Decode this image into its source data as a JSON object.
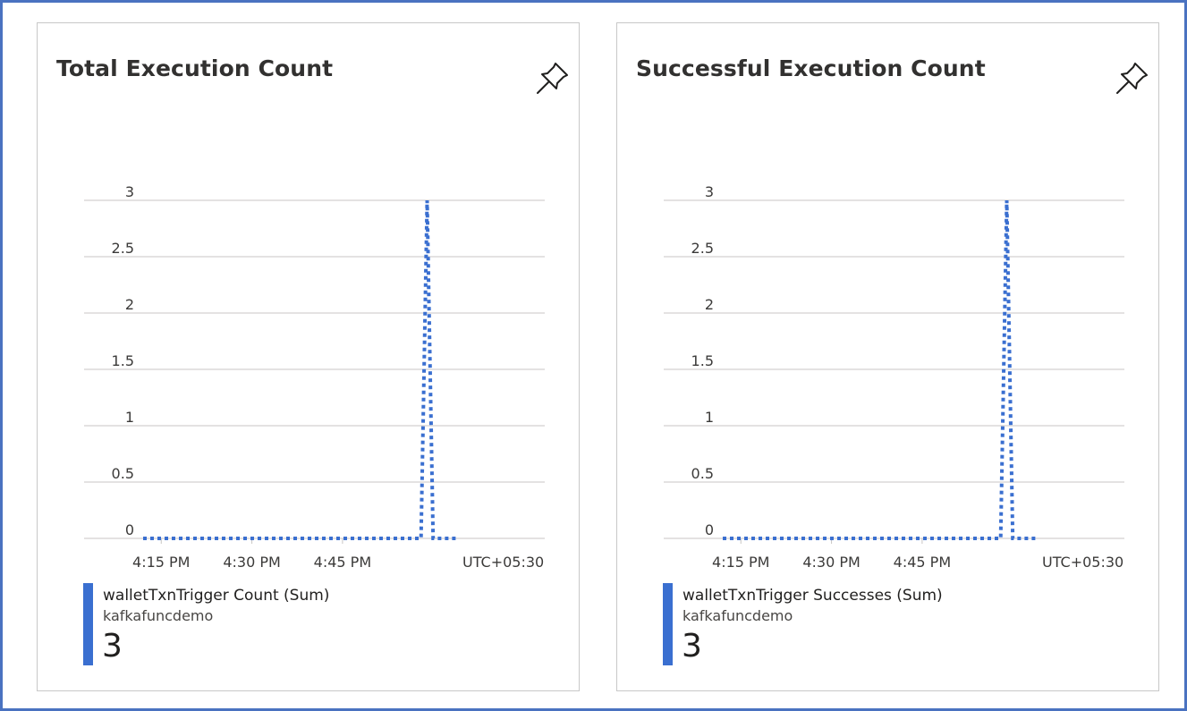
{
  "timezone_label": "UTC+05:30",
  "colors": {
    "series": "#3a6fd0",
    "grid": "#c8c6c4",
    "frame": "#4a72c0"
  },
  "cards": [
    {
      "title": "Total Execution Count",
      "pin_icon": "pin-icon",
      "legend": {
        "series": "walletTxnTrigger Count (Sum)",
        "resource": "kafkafuncdemo",
        "value": "3"
      }
    },
    {
      "title": "Successful Execution Count",
      "pin_icon": "pin-icon",
      "legend": {
        "series": "walletTxnTrigger Successes (Sum)",
        "resource": "kafkafuncdemo",
        "value": "3"
      }
    }
  ],
  "chart_data": [
    {
      "type": "line",
      "title": "Total Execution Count",
      "xlabel": "",
      "ylabel": "",
      "ylim": [
        0,
        3
      ],
      "yticks": [
        "0",
        "0.5",
        "1",
        "1.5",
        "2",
        "2.5",
        "3"
      ],
      "xticks": [
        "4:15 PM",
        "4:30 PM",
        "4:45 PM"
      ],
      "xlim": [
        "4:12 PM",
        "5:09 PM"
      ],
      "grid": true,
      "line_style": "dotted",
      "series": [
        {
          "name": "walletTxnTrigger Count (Sum)",
          "x": [
            "4:12 PM",
            "4:58 PM",
            "4:59 PM",
            "5:00 PM",
            "5:04 PM"
          ],
          "y": [
            0,
            0,
            3,
            0,
            0
          ]
        }
      ]
    },
    {
      "type": "line",
      "title": "Successful Execution Count",
      "xlabel": "",
      "ylabel": "",
      "ylim": [
        0,
        3
      ],
      "yticks": [
        "0",
        "0.5",
        "1",
        "1.5",
        "2",
        "2.5",
        "3"
      ],
      "xticks": [
        "4:15 PM",
        "4:30 PM",
        "4:45 PM"
      ],
      "xlim": [
        "4:12 PM",
        "5:09 PM"
      ],
      "grid": true,
      "line_style": "dotted",
      "series": [
        {
          "name": "walletTxnTrigger Successes (Sum)",
          "x": [
            "4:12 PM",
            "4:58 PM",
            "4:59 PM",
            "5:00 PM",
            "5:04 PM"
          ],
          "y": [
            0,
            0,
            3,
            0,
            0
          ]
        }
      ]
    }
  ]
}
